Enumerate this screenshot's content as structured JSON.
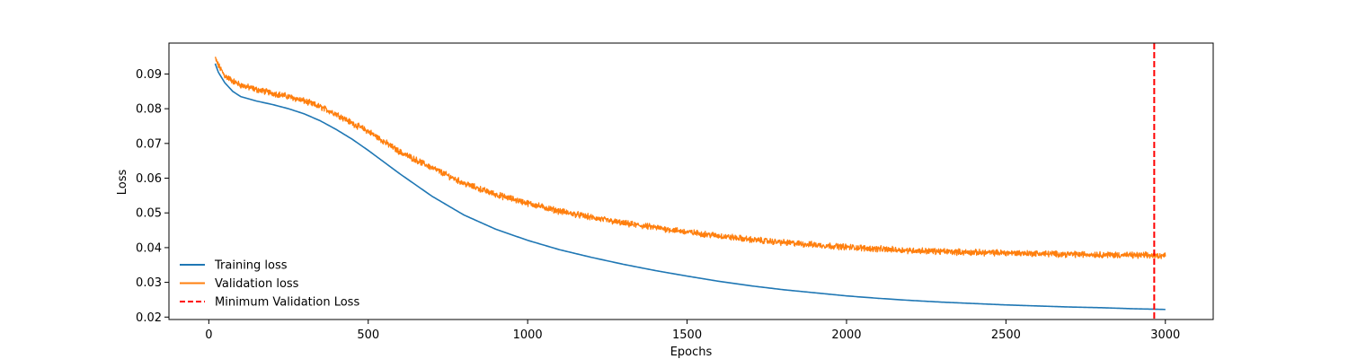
{
  "chart_data": {
    "type": "line",
    "xlabel": "Epochs",
    "ylabel": "Loss",
    "xlim": [
      -125,
      3150
    ],
    "ylim": [
      0.0193,
      0.0989
    ],
    "x_ticks": [
      0,
      500,
      1000,
      1500,
      2000,
      2500,
      3000
    ],
    "y_ticks": [
      0.02,
      0.03,
      0.04,
      0.05,
      0.06,
      0.07,
      0.08,
      0.09
    ],
    "x_tick_labels": [
      "0",
      "500",
      "1000",
      "1500",
      "2000",
      "2500",
      "3000"
    ],
    "y_tick_labels": [
      "0.02",
      "0.03",
      "0.04",
      "0.05",
      "0.06",
      "0.07",
      "0.08",
      "0.09"
    ],
    "grid": false,
    "legend_position": "lower-left",
    "series": [
      {
        "name": "Training loss",
        "color": "#1f77b4",
        "style": "solid",
        "x": [
          20,
          30,
          50,
          75,
          100,
          150,
          200,
          250,
          300,
          350,
          400,
          450,
          500,
          600,
          700,
          800,
          900,
          1000,
          1100,
          1200,
          1300,
          1400,
          1500,
          1600,
          1700,
          1800,
          1900,
          2000,
          2100,
          2200,
          2300,
          2400,
          2500,
          2600,
          2700,
          2800,
          2900,
          3000
        ],
        "y": [
          0.093,
          0.0905,
          0.0875,
          0.085,
          0.0835,
          0.0822,
          0.0812,
          0.08,
          0.0785,
          0.0765,
          0.074,
          0.0712,
          0.068,
          0.0612,
          0.0548,
          0.0494,
          0.0453,
          0.0421,
          0.0394,
          0.0372,
          0.0352,
          0.0334,
          0.0318,
          0.0303,
          0.029,
          0.0279,
          0.027,
          0.0261,
          0.0254,
          0.0248,
          0.0243,
          0.0239,
          0.0235,
          0.0232,
          0.0229,
          0.0227,
          0.0224,
          0.0222
        ]
      },
      {
        "name": "Validation loss",
        "color": "#ff7f0e",
        "style": "solid",
        "noise_amplitude": 0.0007,
        "x": [
          20,
          30,
          50,
          75,
          100,
          150,
          200,
          250,
          300,
          350,
          400,
          450,
          500,
          600,
          700,
          800,
          900,
          1000,
          1100,
          1200,
          1300,
          1400,
          1500,
          1600,
          1700,
          1800,
          1900,
          2000,
          2100,
          2200,
          2300,
          2400,
          2500,
          2600,
          2700,
          2800,
          2900,
          3000
        ],
        "y": [
          0.0945,
          0.0925,
          0.0895,
          0.088,
          0.0868,
          0.0855,
          0.0845,
          0.0835,
          0.0822,
          0.0805,
          0.0785,
          0.0758,
          0.0735,
          0.0675,
          0.063,
          0.0585,
          0.0553,
          0.0528,
          0.0505,
          0.0487,
          0.047,
          0.0458,
          0.0445,
          0.0434,
          0.0423,
          0.0415,
          0.0408,
          0.0402,
          0.0396,
          0.0392,
          0.0389,
          0.0386,
          0.0385,
          0.0383,
          0.0381,
          0.038,
          0.0378,
          0.0377
        ]
      },
      {
        "name": "Minimum Validation Loss",
        "color": "#ff0000",
        "style": "dashed",
        "vertical_x": 2965
      }
    ]
  }
}
